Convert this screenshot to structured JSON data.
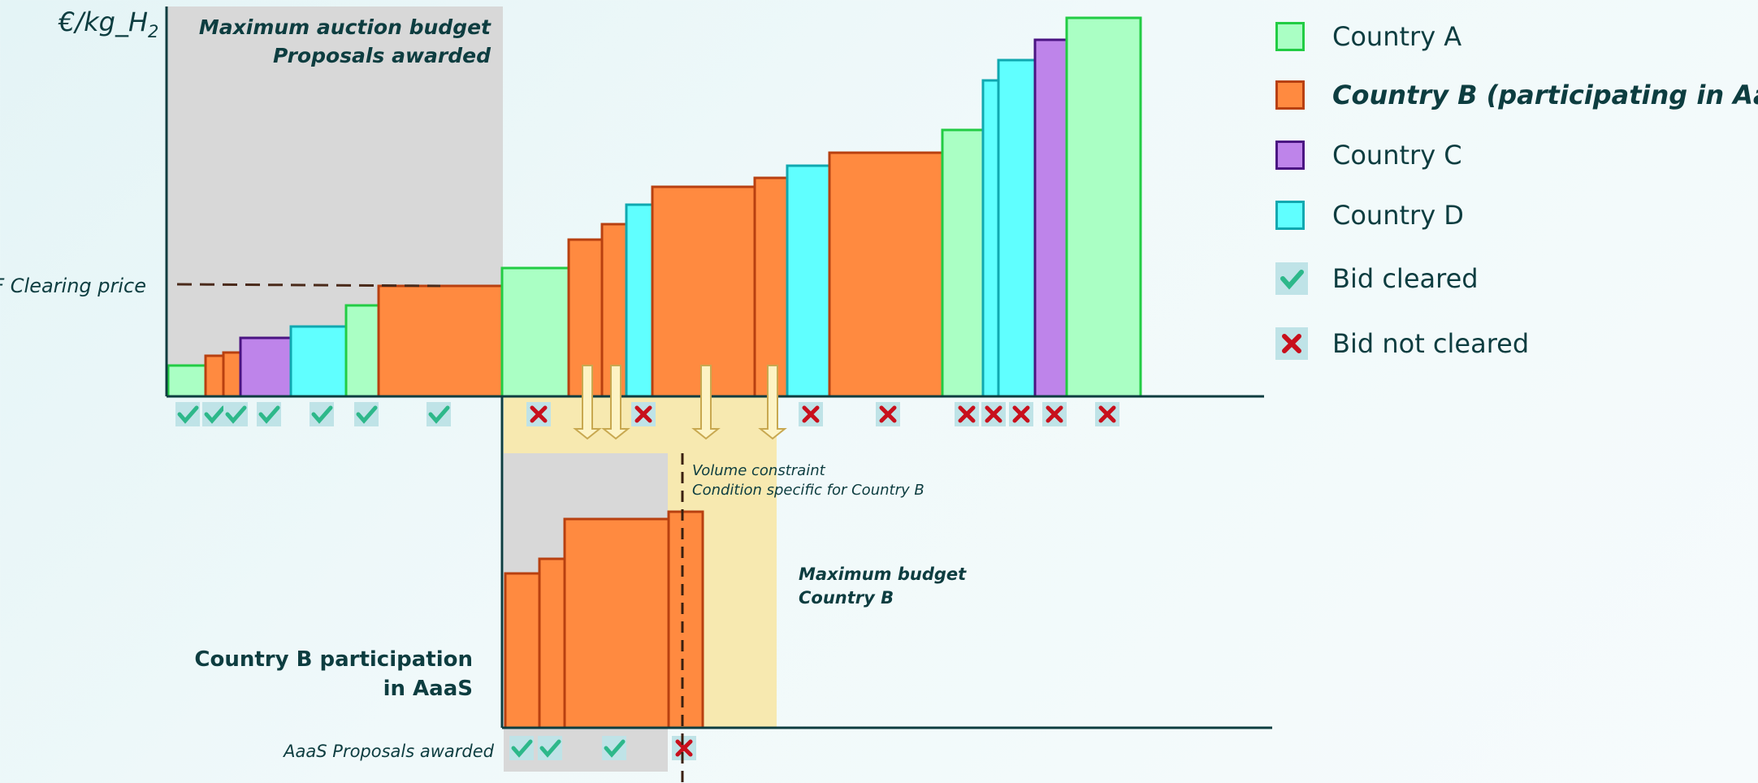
{
  "y_axis_label": "€/kg_H",
  "y_axis_subscript": "2",
  "clearing_price_label": "IF Clearing price",
  "budget_box": {
    "line1": "Maximum auction budget",
    "line2": "Proposals awarded"
  },
  "volume_constraint": {
    "line1": "Volume constraint",
    "line2": "Condition specific for Country B"
  },
  "budget_country_b": {
    "line1": "Maximum budget",
    "line2": "Country B"
  },
  "aaas_participation": {
    "line1": "Country B participation",
    "line2": "in AaaS"
  },
  "aaas_awarded_label": "AaaS Proposals awarded",
  "legend": [
    {
      "label": "Country A",
      "kind": "swatch",
      "fill": "#aaffc4",
      "stroke": "#22cc44",
      "bold": false
    },
    {
      "label": "Country B (participating in AaaS)",
      "kind": "swatch",
      "fill": "#ff8a40",
      "stroke": "#b84010",
      "bold": true
    },
    {
      "label": "Country C",
      "kind": "swatch",
      "fill": "#be84ea",
      "stroke": "#4a1482",
      "bold": false
    },
    {
      "label": "Country D",
      "kind": "swatch",
      "fill": "#60ffff",
      "stroke": "#10a8b0",
      "bold": false
    },
    {
      "label": "Bid cleared",
      "kind": "check",
      "bold": false
    },
    {
      "label": "Bid not cleared",
      "kind": "cross",
      "bold": false
    }
  ],
  "colors": {
    "A": {
      "fill": "#aaffc4",
      "stroke": "#22cc44"
    },
    "B": {
      "fill": "#ff8a40",
      "stroke": "#b84010"
    },
    "C": {
      "fill": "#be84ea",
      "stroke": "#4a1482"
    },
    "D": {
      "fill": "#60ffff",
      "stroke": "#10a8b0"
    },
    "check": "#2db88a",
    "cross": "#c8101c",
    "axis": "#0d3d40",
    "grey_zone": "#d8d8d8",
    "yellow_zone": "#f7e9b0",
    "marker_bg": "#bfe3e7"
  },
  "main_bids": [
    {
      "country": "A",
      "cleared": true
    },
    {
      "country": "B",
      "cleared": true
    },
    {
      "country": "B",
      "cleared": true
    },
    {
      "country": "C",
      "cleared": true
    },
    {
      "country": "D",
      "cleared": true
    },
    {
      "country": "A",
      "cleared": true
    },
    {
      "country": "B",
      "cleared": true
    },
    {
      "country": "A",
      "cleared": false
    },
    {
      "country": "B",
      "cleared": false
    },
    {
      "country": "B",
      "cleared": false
    },
    {
      "country": "D",
      "cleared": false
    },
    {
      "country": "B",
      "cleared": false
    },
    {
      "country": "B",
      "cleared": false
    },
    {
      "country": "D",
      "cleared": false
    },
    {
      "country": "B",
      "cleared": false
    },
    {
      "country": "A",
      "cleared": false
    },
    {
      "country": "D",
      "cleared": false
    },
    {
      "country": "D",
      "cleared": false
    },
    {
      "country": "C",
      "cleared": false
    },
    {
      "country": "A",
      "cleared": false
    }
  ],
  "aaas_bids": [
    {
      "country": "B",
      "cleared": true
    },
    {
      "country": "B",
      "cleared": true
    },
    {
      "country": "B",
      "cleared": true
    },
    {
      "country": "B",
      "cleared": false
    }
  ]
}
